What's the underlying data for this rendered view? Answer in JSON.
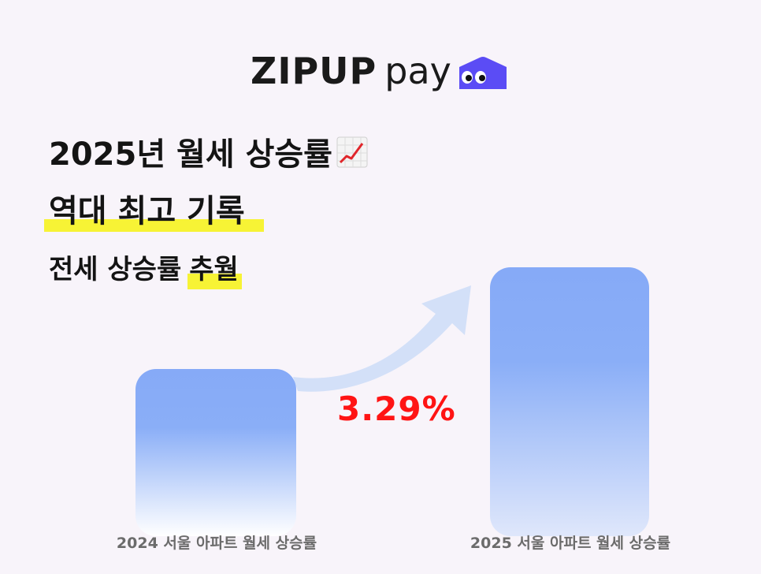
{
  "logo": {
    "brand_bold": "ZIPUP",
    "brand_light": "pay",
    "mascot": "house-eyes-icon",
    "mascot_color": "#5b4cf5"
  },
  "headline": {
    "line1": "2025년 월세 상승률",
    "line1_icon": "chart-increasing-icon",
    "line2": "역대 최고 기록",
    "line3_prefix": "전세 상승률",
    "line3_highlight": "추월",
    "highlight_color": "#f7f335"
  },
  "chart_data": {
    "type": "bar",
    "categories": [
      "2024 서울 아파트 월세 상승률",
      "2025 서울 아파트 월세 상승률"
    ],
    "values": [
      1,
      1.0329
    ],
    "annotation": "3.29%",
    "annotation_color": "#ff1414",
    "bar_color": "#86aaf7",
    "arrow_color": "#d3e0f8"
  }
}
